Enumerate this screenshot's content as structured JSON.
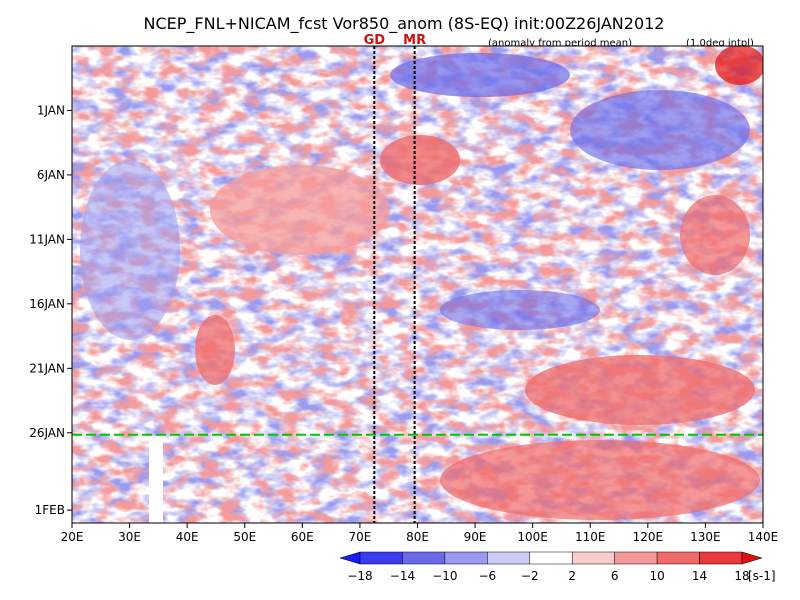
{
  "chart_data": {
    "type": "heatmap",
    "title": "NCEP_FNL+NICAM_fcst Vor850_anom (8S-EQ) init:00Z26JAN2012",
    "subtitle_left": "(anomaly from period mean)",
    "subtitle_right": "(1.0deg intpl)",
    "x_ticks": [
      "20E",
      "30E",
      "40E",
      "50E",
      "60E",
      "70E",
      "80E",
      "90E",
      "100E",
      "110E",
      "120E",
      "130E",
      "140E"
    ],
    "xlim": [
      20,
      140
    ],
    "y_ticks": [
      "1JAN",
      "6JAN",
      "11JAN",
      "16JAN",
      "21JAN",
      "26JAN",
      "1FEB"
    ],
    "y_tick_days": [
      1,
      6,
      11,
      16,
      21,
      26,
      32
    ],
    "ylim": [
      "27DEC",
      "2FEB"
    ],
    "markers": [
      {
        "label": "GD",
        "lon": 72.5
      },
      {
        "label": "MR",
        "lon": 79.5
      }
    ],
    "forecast_init_day": 26,
    "colorbar": {
      "levels": [
        "-18",
        "-14",
        "-10",
        "-6",
        "-2",
        "2",
        "6",
        "10",
        "14",
        "18"
      ],
      "units": "[s-1]",
      "colors": [
        "#1a1aff",
        "#3b3bef",
        "#6a6ae8",
        "#9a9af0",
        "#ccccf6",
        "#ffffff",
        "#f9cccc",
        "#f59a9a",
        "#ef6a6a",
        "#e83b3b",
        "#e01010"
      ]
    },
    "colors": {
      "init_line": "#00c800",
      "marker_text": "#d01010"
    }
  }
}
